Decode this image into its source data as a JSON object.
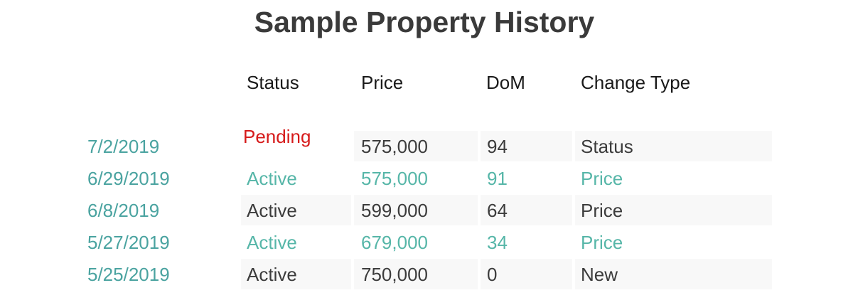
{
  "title": "Sample Property History",
  "headers": {
    "status": "Status",
    "price": "Price",
    "dom": "DoM",
    "change_type": "Change Type"
  },
  "rows": [
    {
      "date": "7/2/2019",
      "status": "Pending",
      "price": "575,000",
      "dom": "94",
      "change_type": "Status"
    },
    {
      "date": "6/29/2019",
      "status": "Active",
      "price": "575,000",
      "dom": "91",
      "change_type": "Price"
    },
    {
      "date": "6/8/2019",
      "status": "Active",
      "price": "599,000",
      "dom": "64",
      "change_type": "Price"
    },
    {
      "date": "5/27/2019",
      "status": "Active",
      "price": "679,000",
      "dom": "34",
      "change_type": "Price"
    },
    {
      "date": "5/25/2019",
      "status": "Active",
      "price": "750,000",
      "dom": "0",
      "change_type": "New"
    }
  ],
  "colors": {
    "date": "#4aa3a0",
    "highlight_row": "#56b6a8",
    "pending": "#d61a1a",
    "text": "#3c3c3c",
    "cell_background": "#f8f8f8"
  }
}
